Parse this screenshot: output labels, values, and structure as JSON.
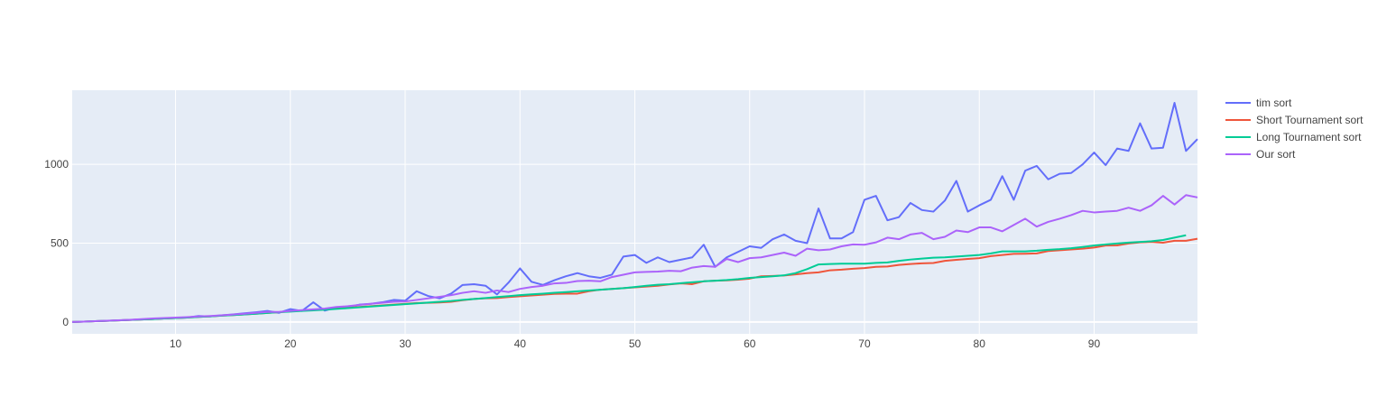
{
  "chart_data": {
    "type": "line",
    "title": "",
    "xlabel": "",
    "ylabel": "",
    "xlim": [
      1,
      99
    ],
    "ylim": [
      -75,
      1470
    ],
    "xticks": [
      10,
      20,
      30,
      40,
      50,
      60,
      70,
      80,
      90
    ],
    "yticks": [
      0,
      500,
      1000
    ],
    "grid": true,
    "legend_position": "top-right",
    "series": [
      {
        "name": "tim sort",
        "color": "#636efa",
        "x": [
          1,
          2,
          3,
          4,
          5,
          6,
          7,
          8,
          9,
          10,
          11,
          12,
          13,
          14,
          15,
          16,
          17,
          18,
          19,
          20,
          21,
          22,
          23,
          24,
          25,
          26,
          27,
          28,
          29,
          30,
          31,
          32,
          33,
          34,
          35,
          36,
          37,
          38,
          39,
          40,
          41,
          42,
          43,
          44,
          45,
          46,
          47,
          48,
          49,
          50,
          51,
          52,
          53,
          54,
          55,
          56,
          57,
          58,
          59,
          60,
          61,
          62,
          63,
          64,
          65,
          66,
          67,
          68,
          69,
          70,
          71,
          72,
          73,
          74,
          75,
          76,
          77,
          78,
          79,
          80,
          81,
          82,
          83,
          84,
          85,
          86,
          87,
          88,
          89,
          90,
          91,
          92,
          93,
          94,
          95,
          96,
          97,
          98,
          99
        ],
        "y": [
          0,
          2,
          5,
          7,
          10,
          13,
          16,
          19,
          22,
          25,
          28,
          38,
          35,
          42,
          48,
          55,
          62,
          70,
          58,
          82,
          70,
          125,
          72,
          92,
          95,
          110,
          115,
          125,
          140,
          135,
          195,
          165,
          150,
          180,
          235,
          240,
          230,
          175,
          250,
          340,
          255,
          235,
          265,
          290,
          310,
          290,
          280,
          300,
          415,
          425,
          375,
          410,
          380,
          395,
          410,
          490,
          350,
          410,
          445,
          480,
          470,
          525,
          555,
          515,
          500,
          720,
          530,
          530,
          570,
          775,
          800,
          645,
          665,
          755,
          710,
          700,
          770,
          895,
          700,
          740,
          775,
          925,
          775,
          960,
          990,
          905,
          940,
          945,
          1000,
          1075,
          995,
          1100,
          1085,
          1260,
          1100,
          1105,
          1390,
          1085,
          1160
        ]
      },
      {
        "name": "Short Tournament sort",
        "color": "#ef553b",
        "x": [
          1,
          2,
          3,
          4,
          5,
          6,
          7,
          8,
          9,
          10,
          11,
          12,
          13,
          14,
          15,
          16,
          17,
          18,
          19,
          20,
          21,
          22,
          23,
          24,
          25,
          26,
          27,
          28,
          29,
          30,
          31,
          32,
          33,
          34,
          35,
          36,
          37,
          38,
          39,
          40,
          41,
          42,
          43,
          44,
          45,
          46,
          47,
          48,
          49,
          50,
          51,
          52,
          53,
          54,
          55,
          56,
          57,
          58,
          59,
          60,
          61,
          62,
          63,
          64,
          65,
          66,
          67,
          68,
          69,
          70,
          71,
          72,
          73,
          74,
          75,
          76,
          77,
          78,
          79,
          80,
          81,
          82,
          83,
          84,
          85,
          86,
          87,
          88,
          89,
          90,
          91,
          92,
          93,
          94,
          95,
          96,
          97,
          98,
          99
        ],
        "y": [
          0,
          2,
          5,
          7,
          10,
          13,
          16,
          19,
          22,
          25,
          28,
          32,
          36,
          40,
          44,
          48,
          52,
          57,
          62,
          67,
          72,
          76,
          80,
          85,
          90,
          95,
          100,
          105,
          110,
          115,
          120,
          122,
          124,
          128,
          138,
          146,
          150,
          152,
          158,
          163,
          168,
          173,
          178,
          180,
          180,
          195,
          205,
          210,
          215,
          220,
          225,
          230,
          238,
          245,
          240,
          258,
          262,
          264,
          268,
          275,
          290,
          292,
          295,
          302,
          310,
          315,
          328,
          332,
          338,
          342,
          350,
          352,
          362,
          368,
          372,
          374,
          388,
          394,
          400,
          405,
          418,
          425,
          432,
          433,
          435,
          450,
          455,
          460,
          465,
          472,
          485,
          486,
          498,
          505,
          508,
          503,
          515,
          515,
          528
        ]
      },
      {
        "name": "Long Tournament sort",
        "color": "#00cc96",
        "x": [
          1,
          2,
          3,
          4,
          5,
          6,
          7,
          8,
          9,
          10,
          11,
          12,
          13,
          14,
          15,
          16,
          17,
          18,
          19,
          20,
          21,
          22,
          23,
          24,
          25,
          26,
          27,
          28,
          29,
          30,
          31,
          32,
          33,
          34,
          35,
          36,
          37,
          38,
          39,
          40,
          41,
          42,
          43,
          44,
          45,
          46,
          47,
          48,
          49,
          50,
          51,
          52,
          53,
          54,
          55,
          56,
          57,
          58,
          59,
          60,
          61,
          62,
          63,
          64,
          65,
          66,
          67,
          68,
          69,
          70,
          71,
          72,
          73,
          74,
          75,
          76,
          77,
          78,
          79,
          80,
          81,
          82,
          83,
          84,
          85,
          86,
          87,
          88,
          89,
          90,
          91,
          92,
          93,
          94,
          95,
          96,
          97,
          98
        ],
        "y": [
          0,
          2,
          5,
          7,
          10,
          13,
          16,
          19,
          22,
          25,
          28,
          32,
          36,
          40,
          44,
          48,
          52,
          57,
          62,
          66,
          70,
          74,
          78,
          83,
          88,
          93,
          98,
          103,
          108,
          113,
          118,
          123,
          128,
          133,
          140,
          146,
          152,
          158,
          164,
          170,
          175,
          180,
          185,
          190,
          195,
          200,
          205,
          210,
          215,
          222,
          230,
          236,
          240,
          246,
          252,
          258,
          262,
          266,
          272,
          280,
          285,
          290,
          296,
          310,
          335,
          365,
          368,
          370,
          370,
          370,
          375,
          378,
          388,
          396,
          402,
          408,
          410,
          415,
          420,
          425,
          435,
          448,
          448,
          448,
          452,
          458,
          462,
          468,
          476,
          485,
          492,
          498,
          504,
          508,
          512,
          520,
          535,
          550
        ]
      },
      {
        "name": "Our sort",
        "color": "#ab63fa",
        "x": [
          1,
          2,
          3,
          4,
          5,
          6,
          7,
          8,
          9,
          10,
          11,
          12,
          13,
          14,
          15,
          16,
          17,
          18,
          19,
          20,
          21,
          22,
          23,
          24,
          25,
          26,
          27,
          28,
          29,
          30,
          31,
          32,
          33,
          34,
          35,
          36,
          37,
          38,
          39,
          40,
          41,
          42,
          43,
          44,
          45,
          46,
          47,
          48,
          49,
          50,
          51,
          52,
          53,
          54,
          55,
          56,
          57,
          58,
          59,
          60,
          61,
          62,
          63,
          64,
          65,
          66,
          67,
          68,
          69,
          70,
          71,
          72,
          73,
          74,
          75,
          76,
          77,
          78,
          79,
          80,
          81,
          82,
          83,
          84,
          85,
          86,
          87,
          88,
          89,
          90,
          91,
          92,
          93,
          94,
          95,
          96,
          97,
          98,
          99
        ],
        "y": [
          0,
          2,
          5,
          8,
          11,
          14,
          18,
          22,
          25,
          28,
          31,
          35,
          38,
          42,
          47,
          52,
          58,
          64,
          64,
          70,
          75,
          80,
          85,
          95,
          100,
          108,
          115,
          122,
          128,
          130,
          140,
          150,
          160,
          170,
          185,
          195,
          185,
          200,
          190,
          210,
          222,
          230,
          245,
          248,
          260,
          262,
          258,
          285,
          300,
          315,
          318,
          320,
          325,
          322,
          345,
          355,
          350,
          400,
          380,
          405,
          410,
          425,
          440,
          420,
          465,
          455,
          460,
          480,
          492,
          490,
          505,
          535,
          525,
          555,
          565,
          525,
          540,
          580,
          570,
          600,
          600,
          575,
          615,
          655,
          605,
          635,
          655,
          678,
          705,
          695,
          700,
          705,
          725,
          705,
          740,
          800,
          745,
          805,
          790
        ]
      }
    ]
  }
}
